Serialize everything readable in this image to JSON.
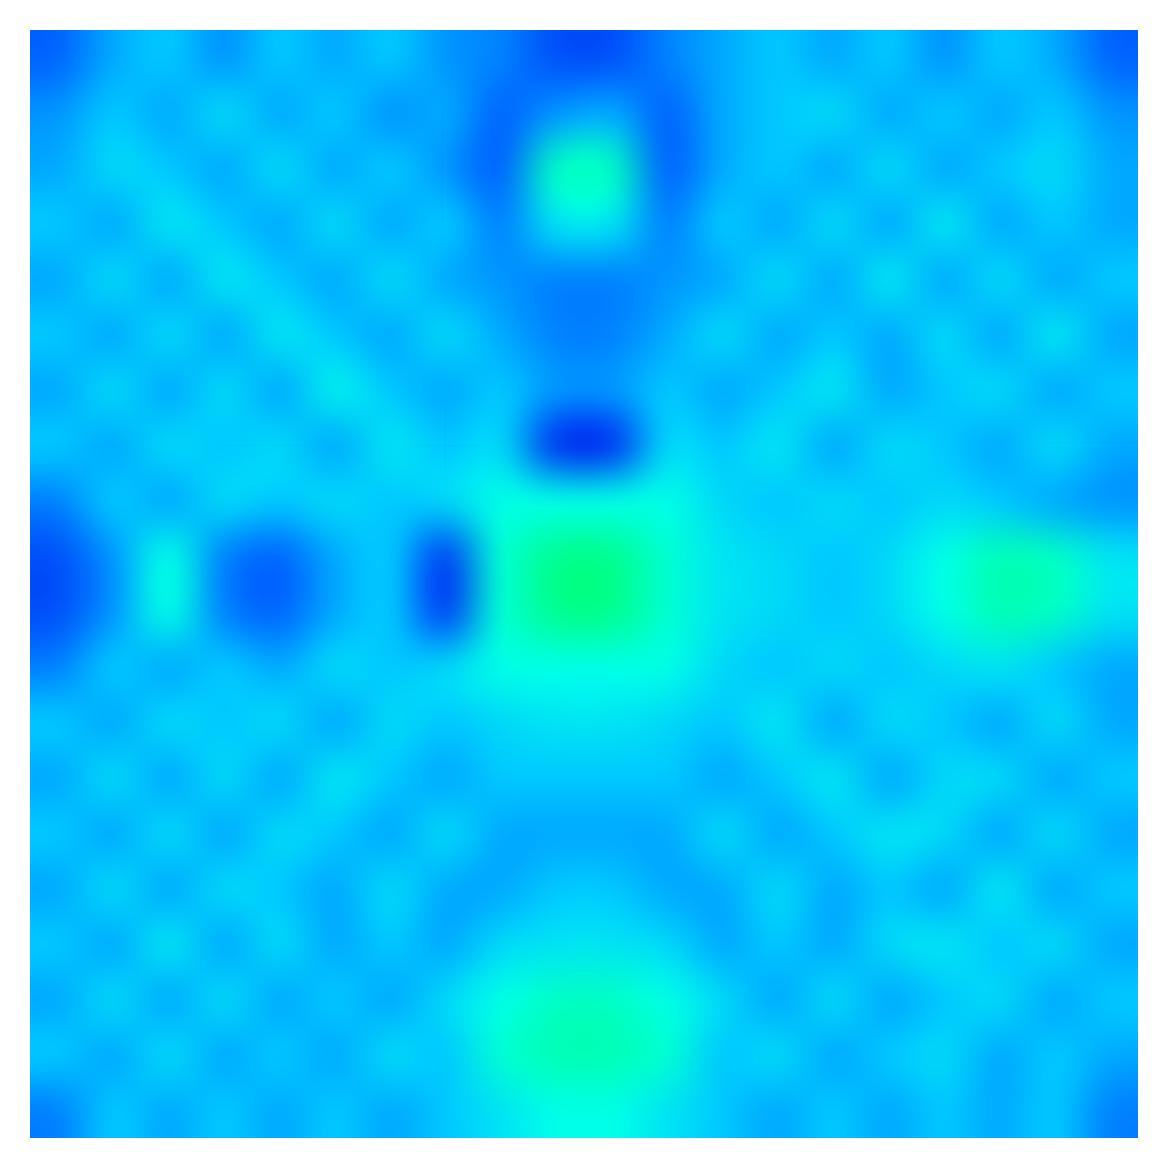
{
  "chart_data": {
    "type": "heatmap",
    "tick_labels": false,
    "grid": false,
    "cells": [
      [
        0.35,
        0.42,
        0.45,
        0.4,
        0.45,
        0.42,
        0.45,
        0.4,
        0.38,
        0.32,
        0.32,
        0.38,
        0.42,
        0.45,
        0.42,
        0.45,
        0.4,
        0.45,
        0.42,
        0.35
      ],
      [
        0.4,
        0.45,
        0.42,
        0.48,
        0.42,
        0.45,
        0.4,
        0.42,
        0.35,
        0.4,
        0.42,
        0.35,
        0.42,
        0.45,
        0.48,
        0.42,
        0.45,
        0.42,
        0.45,
        0.4
      ],
      [
        0.42,
        0.48,
        0.45,
        0.42,
        0.48,
        0.42,
        0.45,
        0.4,
        0.35,
        0.6,
        0.6,
        0.35,
        0.42,
        0.45,
        0.42,
        0.48,
        0.42,
        0.45,
        0.48,
        0.42
      ],
      [
        0.45,
        0.42,
        0.5,
        0.45,
        0.42,
        0.48,
        0.42,
        0.45,
        0.38,
        0.5,
        0.5,
        0.38,
        0.45,
        0.42,
        0.48,
        0.42,
        0.5,
        0.42,
        0.45,
        0.42
      ],
      [
        0.42,
        0.48,
        0.42,
        0.5,
        0.45,
        0.42,
        0.48,
        0.42,
        0.4,
        0.38,
        0.38,
        0.4,
        0.42,
        0.48,
        0.42,
        0.5,
        0.42,
        0.48,
        0.42,
        0.45
      ],
      [
        0.45,
        0.42,
        0.48,
        0.42,
        0.5,
        0.45,
        0.42,
        0.48,
        0.42,
        0.38,
        0.38,
        0.42,
        0.48,
        0.42,
        0.45,
        0.42,
        0.48,
        0.42,
        0.5,
        0.42
      ],
      [
        0.42,
        0.48,
        0.42,
        0.48,
        0.42,
        0.52,
        0.45,
        0.42,
        0.45,
        0.4,
        0.4,
        0.45,
        0.42,
        0.45,
        0.5,
        0.42,
        0.45,
        0.48,
        0.42,
        0.45
      ],
      [
        0.45,
        0.42,
        0.48,
        0.45,
        0.48,
        0.42,
        0.5,
        0.45,
        0.48,
        0.28,
        0.28,
        0.48,
        0.45,
        0.5,
        0.42,
        0.48,
        0.45,
        0.42,
        0.48,
        0.42
      ],
      [
        0.38,
        0.45,
        0.42,
        0.48,
        0.45,
        0.48,
        0.45,
        0.48,
        0.55,
        0.55,
        0.55,
        0.55,
        0.48,
        0.45,
        0.48,
        0.45,
        0.48,
        0.45,
        0.42,
        0.4
      ],
      [
        0.32,
        0.4,
        0.55,
        0.38,
        0.35,
        0.42,
        0.45,
        0.3,
        0.58,
        0.68,
        0.68,
        0.58,
        0.5,
        0.48,
        0.45,
        0.48,
        0.55,
        0.62,
        0.6,
        0.5
      ],
      [
        0.32,
        0.4,
        0.55,
        0.38,
        0.35,
        0.42,
        0.45,
        0.3,
        0.58,
        0.68,
        0.68,
        0.58,
        0.5,
        0.48,
        0.45,
        0.48,
        0.55,
        0.62,
        0.6,
        0.5
      ],
      [
        0.38,
        0.45,
        0.42,
        0.45,
        0.42,
        0.48,
        0.45,
        0.48,
        0.55,
        0.55,
        0.55,
        0.55,
        0.48,
        0.45,
        0.48,
        0.45,
        0.48,
        0.5,
        0.45,
        0.42
      ],
      [
        0.45,
        0.42,
        0.48,
        0.45,
        0.48,
        0.42,
        0.48,
        0.45,
        0.48,
        0.5,
        0.5,
        0.48,
        0.45,
        0.5,
        0.42,
        0.48,
        0.45,
        0.42,
        0.48,
        0.42
      ],
      [
        0.42,
        0.48,
        0.42,
        0.48,
        0.42,
        0.5,
        0.45,
        0.42,
        0.45,
        0.45,
        0.45,
        0.45,
        0.42,
        0.45,
        0.5,
        0.42,
        0.48,
        0.48,
        0.42,
        0.45
      ],
      [
        0.45,
        0.42,
        0.48,
        0.42,
        0.48,
        0.45,
        0.42,
        0.48,
        0.42,
        0.42,
        0.42,
        0.42,
        0.48,
        0.42,
        0.45,
        0.5,
        0.48,
        0.42,
        0.48,
        0.42
      ],
      [
        0.42,
        0.48,
        0.42,
        0.48,
        0.45,
        0.42,
        0.48,
        0.42,
        0.42,
        0.45,
        0.45,
        0.42,
        0.42,
        0.48,
        0.42,
        0.45,
        0.42,
        0.5,
        0.42,
        0.45
      ],
      [
        0.45,
        0.42,
        0.5,
        0.42,
        0.48,
        0.42,
        0.45,
        0.42,
        0.48,
        0.5,
        0.5,
        0.48,
        0.42,
        0.45,
        0.42,
        0.48,
        0.5,
        0.45,
        0.48,
        0.42
      ],
      [
        0.42,
        0.48,
        0.42,
        0.48,
        0.42,
        0.45,
        0.42,
        0.48,
        0.55,
        0.6,
        0.6,
        0.55,
        0.48,
        0.42,
        0.48,
        0.42,
        0.45,
        0.48,
        0.42,
        0.45
      ],
      [
        0.45,
        0.42,
        0.48,
        0.42,
        0.45,
        0.42,
        0.48,
        0.45,
        0.58,
        0.62,
        0.62,
        0.58,
        0.45,
        0.48,
        0.42,
        0.45,
        0.48,
        0.42,
        0.45,
        0.42
      ],
      [
        0.38,
        0.45,
        0.42,
        0.45,
        0.42,
        0.45,
        0.42,
        0.45,
        0.5,
        0.55,
        0.55,
        0.5,
        0.45,
        0.42,
        0.45,
        0.42,
        0.45,
        0.42,
        0.45,
        0.38
      ]
    ]
  }
}
